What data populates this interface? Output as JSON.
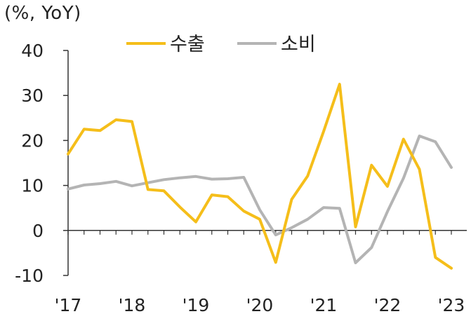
{
  "chart_data": {
    "type": "line",
    "unit_label": "(%, YoY)",
    "x": [
      "Q1'17",
      "Q2'17",
      "Q3'17",
      "Q4'17",
      "Q1'18",
      "Q2'18",
      "Q3'18",
      "Q4'18",
      "Q1'19",
      "Q2'19",
      "Q3'19",
      "Q4'19",
      "Q1'20",
      "Q2'20",
      "Q3'20",
      "Q4'20",
      "Q1'21",
      "Q2'21",
      "Q3'21",
      "Q4'21",
      "Q1'22",
      "Q2'22",
      "Q3'22",
      "Q4'22",
      "Q1'23"
    ],
    "x_tick_labels": [
      "'17",
      "'18",
      "'19",
      "'20",
      "'21",
      "'22",
      "'23"
    ],
    "y_ticks": [
      40,
      30,
      20,
      10,
      0,
      -10
    ],
    "ylim": [
      -10,
      40
    ],
    "grid": false,
    "legend_position": "top",
    "series": [
      {
        "name": "수출",
        "color": "#F5BE1A",
        "values": [
          17,
          22.5,
          22.2,
          24.6,
          24.2,
          9.1,
          8.8,
          5.2,
          1.9,
          7.9,
          7.5,
          4.3,
          2.5,
          -7.1,
          6.9,
          12.1,
          22,
          32.5,
          0.8,
          14.5,
          9.8,
          20.3,
          13.6,
          -6.0,
          -8.4
        ]
      },
      {
        "name": "소비",
        "color": "#B4B4B4",
        "values": [
          9.2,
          10.1,
          10.4,
          10.9,
          9.9,
          10.6,
          11.3,
          11.7,
          12.0,
          11.4,
          11.5,
          11.8,
          4.6,
          -1.0,
          0.6,
          2.5,
          5.1,
          4.9,
          -7.2,
          -3.8,
          4.2,
          11.6,
          21.0,
          19.7,
          14.0
        ]
      }
    ]
  }
}
